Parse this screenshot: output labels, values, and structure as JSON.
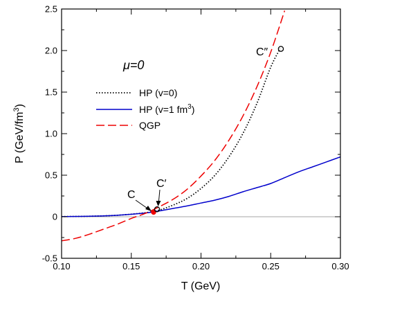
{
  "chart_data": {
    "type": "line",
    "title": "",
    "xlabel": "T (GeV)",
    "ylabel": "P (GeV/fm³)",
    "xlim": [
      0.1,
      0.3
    ],
    "ylim": [
      -0.5,
      2.5
    ],
    "x_ticks": [
      0.1,
      0.15,
      0.2,
      0.25,
      0.3
    ],
    "x_tick_labels": [
      "0.10",
      "0.15",
      "0.20",
      "0.25",
      "0.30"
    ],
    "y_ticks": [
      -0.5,
      0,
      0.5,
      1.0,
      1.5,
      2.0,
      2.5
    ],
    "y_tick_labels": [
      "-0.5",
      "0",
      "0.5",
      "1.0",
      "1.5",
      "2.0",
      "2.5"
    ],
    "grid": false,
    "zero_line": true,
    "legend_position": "upper-left",
    "series": [
      {
        "name": "HP (v=0)",
        "style": "dotted",
        "color": "#000000",
        "x": [
          0.1,
          0.12,
          0.14,
          0.16,
          0.17,
          0.18,
          0.19,
          0.2,
          0.21,
          0.22,
          0.23,
          0.24,
          0.25,
          0.2567
        ],
        "y": [
          0.002,
          0.006,
          0.018,
          0.048,
          0.08,
          0.14,
          0.22,
          0.34,
          0.5,
          0.72,
          1.0,
          1.36,
          1.8,
          2.02
        ]
      },
      {
        "name": "HP (v=1 fm³)",
        "style": "solid",
        "color": "#0000cc",
        "x": [
          0.1,
          0.12,
          0.14,
          0.16,
          0.17,
          0.18,
          0.19,
          0.2,
          0.21,
          0.22,
          0.23,
          0.24,
          0.25,
          0.26,
          0.27,
          0.28,
          0.29,
          0.3
        ],
        "y": [
          0.002,
          0.006,
          0.018,
          0.045,
          0.07,
          0.1,
          0.13,
          0.165,
          0.2,
          0.245,
          0.3,
          0.35,
          0.4,
          0.47,
          0.54,
          0.6,
          0.66,
          0.72
        ]
      },
      {
        "name": "QGP",
        "style": "dashed",
        "color": "#ee0000",
        "x": [
          0.1,
          0.11,
          0.12,
          0.13,
          0.14,
          0.15,
          0.16,
          0.17,
          0.18,
          0.19,
          0.2,
          0.21,
          0.22,
          0.23,
          0.24,
          0.25,
          0.26
        ],
        "y": [
          -0.29,
          -0.26,
          -0.21,
          -0.15,
          -0.09,
          -0.02,
          0.04,
          0.12,
          0.21,
          0.33,
          0.49,
          0.68,
          0.92,
          1.21,
          1.56,
          1.98,
          2.48
        ]
      }
    ],
    "legend": [
      "HP (v=0)",
      "HP (v=1 fm³)",
      "QGP"
    ],
    "points": [
      {
        "label": "C",
        "x": 0.166,
        "y": 0.055,
        "marker": "filled-red"
      },
      {
        "label": "C′",
        "x": 0.1685,
        "y": 0.09,
        "marker": "open-circle"
      },
      {
        "label": "C″",
        "x": 0.2573,
        "y": 2.02,
        "marker": "open-circle"
      }
    ],
    "annotations": [
      "μ=0"
    ]
  },
  "labels": {
    "mu": "μ=0",
    "c": "C",
    "c_prime": "C′",
    "c_double_prime": "C″",
    "ylabel_prefix": "P (GeV/fm",
    "ylabel_exp": "3",
    "ylabel_suffix": ")",
    "legend_hp0": "HP (v=0)",
    "legend_hp1_prefix": "HP (v=1 fm",
    "legend_hp1_exp": "3",
    "legend_hp1_suffix": ")",
    "legend_qgp": "QGP"
  }
}
